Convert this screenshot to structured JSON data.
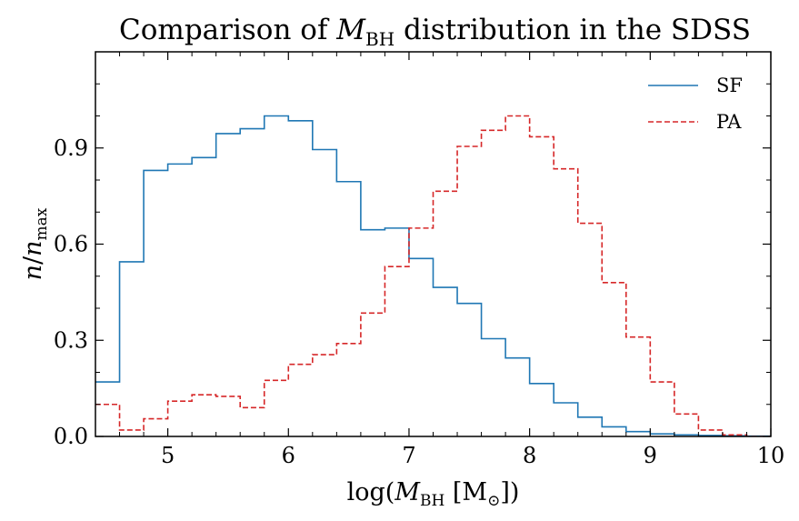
{
  "chart_data": {
    "type": "step-histogram",
    "title_parts": [
      "Comparison of ",
      "M",
      "BH",
      " distribution in the SDSS"
    ],
    "xlabel_parts": [
      "log(",
      "M",
      "BH",
      " [M",
      "⊙",
      "])"
    ],
    "ylabel_parts": [
      "n",
      "/",
      "n",
      "max"
    ],
    "xlim": [
      4.4,
      10.0
    ],
    "ylim": [
      0.0,
      1.2
    ],
    "x_ticks": [
      5,
      6,
      7,
      8,
      9,
      10
    ],
    "x_tick_labels": [
      "5",
      "6",
      "7",
      "8",
      "9",
      "10"
    ],
    "y_ticks": [
      0.0,
      0.3,
      0.6,
      0.9
    ],
    "y_tick_labels": [
      "0.0",
      "0.3",
      "0.6",
      "0.9"
    ],
    "legend_position": "top-right",
    "bin_edges": [
      4.4,
      4.6,
      4.8,
      5.0,
      5.2,
      5.4,
      5.6,
      5.8,
      6.0,
      6.2,
      6.4,
      6.6,
      6.8,
      7.0,
      7.2,
      7.4,
      7.6,
      7.8,
      8.0,
      8.2,
      8.4,
      8.6,
      8.8,
      9.0,
      9.2,
      9.4,
      9.6,
      9.8,
      10.0
    ],
    "series": [
      {
        "name": "SF",
        "color": "#1f77b4",
        "dashed": false,
        "values": [
          0.17,
          0.545,
          0.83,
          0.85,
          0.87,
          0.945,
          0.96,
          1.0,
          0.985,
          0.895,
          0.795,
          0.645,
          0.65,
          0.555,
          0.465,
          0.415,
          0.305,
          0.245,
          0.165,
          0.105,
          0.06,
          0.03,
          0.015,
          0.008,
          0.005,
          0.003,
          0.002,
          0.001
        ]
      },
      {
        "name": "PA",
        "color": "#d62728",
        "dashed": true,
        "values": [
          0.1,
          0.02,
          0.055,
          0.11,
          0.13,
          0.125,
          0.09,
          0.175,
          0.225,
          0.255,
          0.29,
          0.385,
          0.53,
          0.65,
          0.765,
          0.905,
          0.955,
          1.0,
          0.935,
          0.835,
          0.665,
          0.48,
          0.31,
          0.17,
          0.07,
          0.02,
          0.005,
          0.0
        ]
      }
    ]
  }
}
